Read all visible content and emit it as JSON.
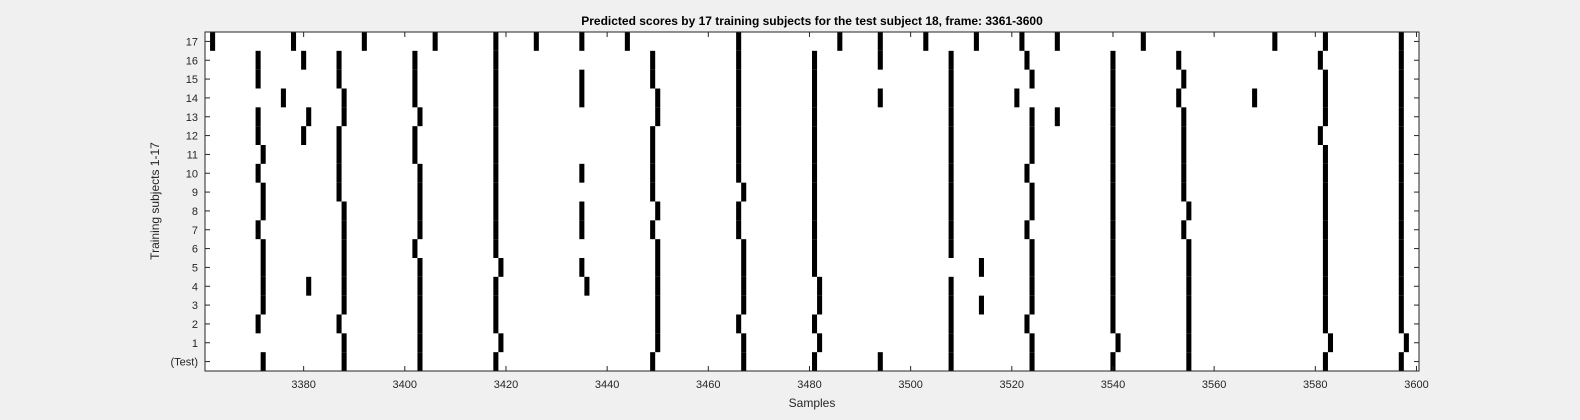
{
  "chart_data": {
    "type": "heatmap",
    "title": "Predicted scores by 17 training subjects for the test subject 18, frame: 3361-3600",
    "xlabel": "Samples",
    "ylabel": "Training subjects 1-17",
    "xlim": [
      3361,
      3600
    ],
    "xticks": [
      3380,
      3400,
      3420,
      3440,
      3460,
      3480,
      3500,
      3520,
      3540,
      3560,
      3580,
      3600
    ],
    "yticklabels": [
      "(Test)",
      "1",
      "2",
      "3",
      "4",
      "5",
      "6",
      "7",
      "8",
      "9",
      "10",
      "11",
      "12",
      "13",
      "14",
      "15",
      "16",
      "17"
    ],
    "value_description": "1 = marked sample (black), 0 = white",
    "rows": [
      {
        "label": "(Test)",
        "marked_samples": [
          3372,
          3388,
          3403,
          3418,
          3449,
          3467,
          3481,
          3494,
          3508,
          3524,
          3540,
          3555,
          3582,
          3597
        ]
      },
      {
        "label": "1",
        "marked_samples": [
          3388,
          3403,
          3419,
          3450,
          3467,
          3482,
          3508,
          3524,
          3541,
          3555,
          3583,
          3598
        ]
      },
      {
        "label": "2",
        "marked_samples": [
          3371,
          3387,
          3403,
          3418,
          3450,
          3466,
          3481,
          3508,
          3523,
          3540,
          3555,
          3582,
          3597
        ]
      },
      {
        "label": "3",
        "marked_samples": [
          3372,
          3388,
          3403,
          3418,
          3450,
          3467,
          3482,
          3508,
          3514,
          3524,
          3540,
          3555,
          3582,
          3597
        ]
      },
      {
        "label": "4",
        "marked_samples": [
          3372,
          3381,
          3388,
          3403,
          3418,
          3436,
          3450,
          3467,
          3482,
          3508,
          3524,
          3540,
          3555,
          3582,
          3597
        ]
      },
      {
        "label": "5",
        "marked_samples": [
          3372,
          3388,
          3403,
          3419,
          3435,
          3450,
          3467,
          3481,
          3514,
          3524,
          3540,
          3555,
          3582,
          3597
        ]
      },
      {
        "label": "6",
        "marked_samples": [
          3372,
          3388,
          3402,
          3418,
          3450,
          3467,
          3481,
          3508,
          3524,
          3540,
          3555,
          3582,
          3597
        ]
      },
      {
        "label": "7",
        "marked_samples": [
          3371,
          3388,
          3403,
          3418,
          3435,
          3449,
          3466,
          3481,
          3508,
          3523,
          3540,
          3554,
          3582,
          3597
        ]
      },
      {
        "label": "8",
        "marked_samples": [
          3372,
          3388,
          3403,
          3418,
          3435,
          3450,
          3466,
          3481,
          3508,
          3524,
          3540,
          3555,
          3582,
          3597
        ]
      },
      {
        "label": "9",
        "marked_samples": [
          3372,
          3387,
          3403,
          3418,
          3449,
          3467,
          3481,
          3508,
          3524,
          3540,
          3554,
          3582,
          3597
        ]
      },
      {
        "label": "10",
        "marked_samples": [
          3371,
          3387,
          3403,
          3418,
          3435,
          3449,
          3466,
          3481,
          3508,
          3523,
          3540,
          3554,
          3582,
          3597
        ]
      },
      {
        "label": "11",
        "marked_samples": [
          3372,
          3387,
          3402,
          3418,
          3449,
          3466,
          3481,
          3508,
          3524,
          3540,
          3554,
          3582,
          3597
        ]
      },
      {
        "label": "12",
        "marked_samples": [
          3371,
          3380,
          3387,
          3402,
          3418,
          3449,
          3466,
          3481,
          3508,
          3524,
          3540,
          3554,
          3581,
          3597
        ]
      },
      {
        "label": "13",
        "marked_samples": [
          3371,
          3381,
          3388,
          3403,
          3418,
          3450,
          3466,
          3481,
          3508,
          3524,
          3529,
          3540,
          3554,
          3582,
          3597
        ]
      },
      {
        "label": "14",
        "marked_samples": [
          3376,
          3388,
          3402,
          3418,
          3435,
          3450,
          3466,
          3481,
          3494,
          3508,
          3521,
          3540,
          3553,
          3568,
          3582,
          3597
        ]
      },
      {
        "label": "15",
        "marked_samples": [
          3371,
          3387,
          3402,
          3418,
          3435,
          3449,
          3466,
          3481,
          3508,
          3524,
          3540,
          3554,
          3582,
          3597
        ]
      },
      {
        "label": "16",
        "marked_samples": [
          3371,
          3380,
          3387,
          3402,
          3418,
          3449,
          3466,
          3481,
          3494,
          3508,
          3523,
          3540,
          3553,
          3581,
          3597
        ]
      },
      {
        "label": "17",
        "marked_samples": [
          3362,
          3378,
          3392,
          3406,
          3418,
          3426,
          3435,
          3444,
          3466,
          3486,
          3494,
          3503,
          3513,
          3522,
          3529,
          3546,
          3572,
          3582,
          3597
        ]
      }
    ]
  }
}
